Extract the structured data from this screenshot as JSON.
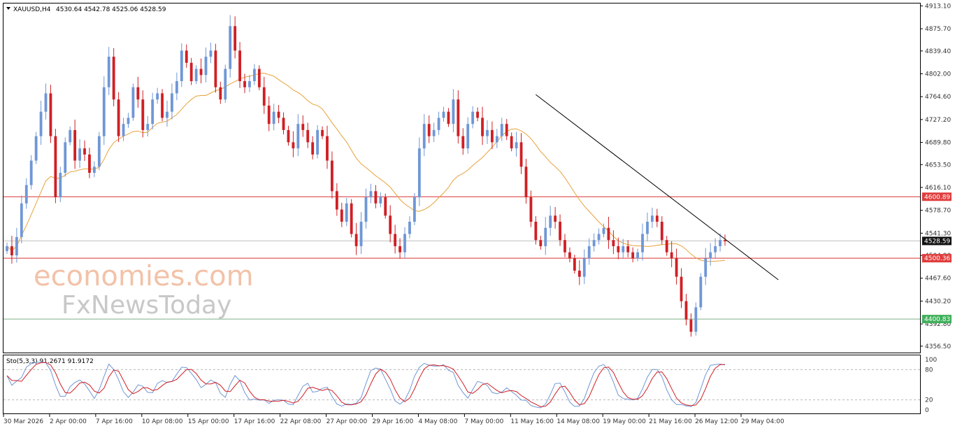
{
  "header": {
    "symbol": "XAUUSD,H4",
    "ohlc": "4530.64 4542.78 4525.06 4528.59"
  },
  "indicator": {
    "label": "Sto(5,3,3) 91.2671 91.9172",
    "levels": [
      "100",
      "80",
      "20",
      "0"
    ]
  },
  "watermark": {
    "line1": "economies.com",
    "line2": "FxNewsToday"
  },
  "colors": {
    "bull": "#6f97d6",
    "bear": "#d01f24",
    "ma": "#e8a13a",
    "hline": "#d93434",
    "green_line": "#7bb08a",
    "trend": "#000000",
    "tag_red": "#e03d3d",
    "tag_green": "#3fb05a",
    "tag_current": "#111111"
  },
  "chart_data": {
    "type": "candlestick",
    "price_ticks": [
      "4913.10",
      "4875.70",
      "4839.40",
      "4802.00",
      "4764.60",
      "4727.20",
      "4689.80",
      "4653.50",
      "4616.10",
      "4578.70",
      "4541.30",
      "4504.90",
      "4467.60",
      "4430.20",
      "4392.80",
      "4356.50"
    ],
    "time_labels": [
      "30 Mar 2026",
      "2 Apr 00:00",
      "7 Apr 16:00",
      "10 Apr 08:00",
      "15 Apr 00:00",
      "17 Apr 16:00",
      "22 Apr 08:00",
      "27 Apr 00:00",
      "29 Apr 16:00",
      "4 May 08:00",
      "7 May 00:00",
      "11 May 16:00",
      "14 May 08:00",
      "19 May 00:00",
      "21 May 16:00",
      "26 May 12:00",
      "29 May 04:00"
    ],
    "ylim": [
      4346,
      4917
    ],
    "levels": [
      {
        "label": "4600.89",
        "value": 4600.89,
        "style": "red"
      },
      {
        "label": "4500.36",
        "value": 4500.36,
        "style": "red"
      },
      {
        "label": "4400.83",
        "value": 4400.83,
        "style": "green"
      }
    ],
    "current_price": {
      "label": "4528.59",
      "value": 4528.59
    },
    "trendline": {
      "from": [
        4768,
        4768
      ],
      "to": [
        4465,
        4465
      ]
    },
    "closes": [
      4520,
      4505,
      4535,
      4590,
      4620,
      4660,
      4700,
      4740,
      4770,
      4700,
      4600,
      4640,
      4690,
      4710,
      4660,
      4680,
      4670,
      4640,
      4650,
      4700,
      4780,
      4830,
      4760,
      4700,
      4720,
      4730,
      4780,
      4760,
      4710,
      4720,
      4760,
      4770,
      4730,
      4740,
      4770,
      4790,
      4840,
      4820,
      4790,
      4810,
      4800,
      4830,
      4840,
      4780,
      4760,
      4810,
      4880,
      4840,
      4790,
      4780,
      4790,
      4810,
      4780,
      4750,
      4720,
      4740,
      4730,
      4710,
      4690,
      4680,
      4720,
      4710,
      4690,
      4670,
      4710,
      4700,
      4660,
      4610,
      4580,
      4560,
      4590,
      4540,
      4520,
      4560,
      4600,
      4610,
      4590,
      4600,
      4570,
      4540,
      4520,
      4510,
      4540,
      4560,
      4600,
      4680,
      4720,
      4700,
      4710,
      4730,
      4740,
      4720,
      4760,
      4700,
      4680,
      4720,
      4740,
      4730,
      4700,
      4710,
      4690,
      4700,
      4720,
      4700,
      4680,
      4690,
      4650,
      4600,
      4560,
      4530,
      4520,
      4550,
      4570,
      4560,
      4530,
      4510,
      4500,
      4480,
      4470,
      4500,
      4520,
      4530,
      4540,
      4550,
      4530,
      4520,
      4510,
      4520,
      4510,
      4500,
      4510,
      4540,
      4560,
      4570,
      4560,
      4530,
      4510,
      4500,
      4470,
      4430,
      4400,
      4380,
      4420,
      4470,
      4500,
      4510,
      4520,
      4530,
      4528
    ],
    "series": [
      {
        "name": "Sto(5,3,3)",
        "last": 91.2671
      },
      {
        "name": "signal",
        "last": 91.9172
      }
    ]
  }
}
